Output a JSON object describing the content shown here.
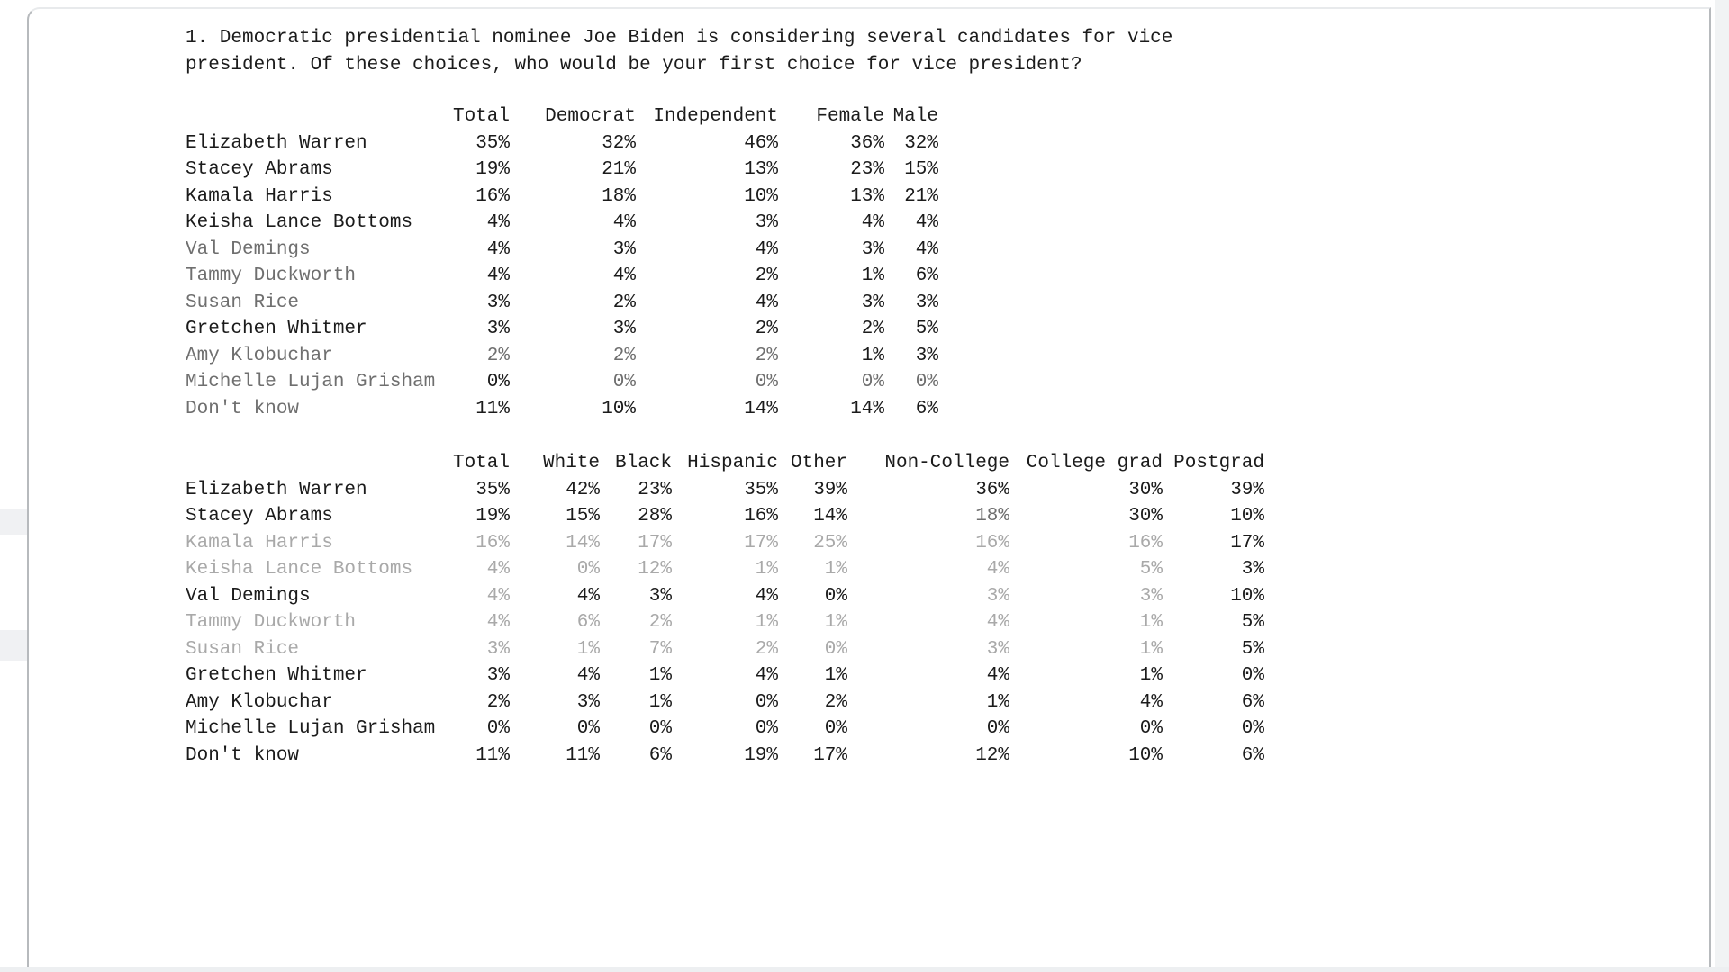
{
  "document": {
    "question": "1. Democratic presidential nominee Joe Biden is considering several candidates for vice president. Of these choices, who would be your first choice for vice president?"
  },
  "colors": {
    "text": "#1b1b1b",
    "faded_medium": "#6f6f6f",
    "faded_light": "#a9a9a9",
    "page_border": "#b7babd",
    "scrollbar_track": "#f1f3f4"
  },
  "table1": {
    "columns": [
      "Total",
      "Democrat",
      "Independent",
      "Female",
      "Male"
    ],
    "rows": [
      {
        "name": "Elizabeth Warren",
        "name_shade": 0,
        "values": [
          "35%",
          "32%",
          "46%",
          "36%",
          "32%"
        ],
        "value_shades": [
          0,
          0,
          0,
          0,
          0
        ]
      },
      {
        "name": "Stacey Abrams",
        "name_shade": 0,
        "values": [
          "19%",
          "21%",
          "13%",
          "23%",
          "15%"
        ],
        "value_shades": [
          0,
          0,
          0,
          0,
          0
        ]
      },
      {
        "name": "Kamala Harris",
        "name_shade": 0,
        "values": [
          "16%",
          "18%",
          "10%",
          "13%",
          "21%"
        ],
        "value_shades": [
          0,
          0,
          0,
          0,
          0
        ]
      },
      {
        "name": "Keisha Lance Bottoms",
        "name_shade": 0,
        "values": [
          "4%",
          "4%",
          "3%",
          "4%",
          "4%"
        ],
        "value_shades": [
          0,
          0,
          0,
          0,
          0
        ]
      },
      {
        "name": "Val Demings",
        "name_shade": 1,
        "values": [
          "4%",
          "3%",
          "4%",
          "3%",
          "4%"
        ],
        "value_shades": [
          0,
          0,
          0,
          0,
          0
        ]
      },
      {
        "name": "Tammy Duckworth",
        "name_shade": 1,
        "values": [
          "4%",
          "4%",
          "2%",
          "1%",
          "6%"
        ],
        "value_shades": [
          0,
          0,
          0,
          0,
          0
        ]
      },
      {
        "name": "Susan Rice",
        "name_shade": 1,
        "values": [
          "3%",
          "2%",
          "4%",
          "3%",
          "3%"
        ],
        "value_shades": [
          0,
          0,
          0,
          0,
          0
        ]
      },
      {
        "name": "Gretchen Whitmer",
        "name_shade": 0,
        "values": [
          "3%",
          "3%",
          "2%",
          "2%",
          "5%"
        ],
        "value_shades": [
          0,
          0,
          0,
          0,
          0
        ]
      },
      {
        "name": "Amy Klobuchar",
        "name_shade": 1,
        "values": [
          "2%",
          "2%",
          "2%",
          "1%",
          "3%"
        ],
        "value_shades": [
          1,
          1,
          1,
          0,
          0
        ]
      },
      {
        "name": "Michelle Lujan Grisham",
        "name_shade": 1,
        "values": [
          "0%",
          "0%",
          "0%",
          "0%",
          "0%"
        ],
        "value_shades": [
          0,
          1,
          1,
          1,
          1
        ]
      },
      {
        "name": "Don't know",
        "name_shade": 1,
        "values": [
          "11%",
          "10%",
          "14%",
          "14%",
          "6%"
        ],
        "value_shades": [
          0,
          0,
          0,
          0,
          0
        ]
      }
    ]
  },
  "table2": {
    "columns": [
      "Total",
      "White",
      "Black",
      "Hispanic",
      "Other",
      "Non-College",
      "College grad",
      "Postgrad"
    ],
    "rows": [
      {
        "name": "Elizabeth Warren",
        "name_shade": 0,
        "values": [
          "35%",
          "42%",
          "23%",
          "35%",
          "39%",
          "36%",
          "30%",
          "39%"
        ],
        "value_shades": [
          0,
          0,
          0,
          0,
          0,
          0,
          0,
          0
        ]
      },
      {
        "name": "Stacey Abrams",
        "name_shade": 0,
        "values": [
          "19%",
          "15%",
          "28%",
          "16%",
          "14%",
          "18%",
          "30%",
          "10%"
        ],
        "value_shades": [
          0,
          0,
          0,
          0,
          0,
          1,
          0,
          0
        ]
      },
      {
        "name": "Kamala Harris",
        "name_shade": 2,
        "values": [
          "16%",
          "14%",
          "17%",
          "17%",
          "25%",
          "16%",
          "16%",
          "17%"
        ],
        "value_shades": [
          2,
          2,
          2,
          2,
          2,
          2,
          2,
          0
        ]
      },
      {
        "name": "Keisha Lance Bottoms",
        "name_shade": 2,
        "values": [
          "4%",
          "0%",
          "12%",
          "1%",
          "1%",
          "4%",
          "5%",
          "3%"
        ],
        "value_shades": [
          2,
          2,
          2,
          2,
          2,
          2,
          2,
          0
        ]
      },
      {
        "name": "Val Demings",
        "name_shade": 0,
        "values": [
          "4%",
          "4%",
          "3%",
          "4%",
          "0%",
          "3%",
          "3%",
          "10%"
        ],
        "value_shades": [
          2,
          0,
          0,
          0,
          0,
          2,
          2,
          0
        ]
      },
      {
        "name": "Tammy Duckworth",
        "name_shade": 2,
        "values": [
          "4%",
          "6%",
          "2%",
          "1%",
          "1%",
          "4%",
          "1%",
          "5%"
        ],
        "value_shades": [
          2,
          2,
          2,
          2,
          2,
          2,
          2,
          0
        ]
      },
      {
        "name": "Susan Rice",
        "name_shade": 2,
        "values": [
          "3%",
          "1%",
          "7%",
          "2%",
          "0%",
          "3%",
          "1%",
          "5%"
        ],
        "value_shades": [
          2,
          2,
          2,
          2,
          2,
          2,
          2,
          0
        ]
      },
      {
        "name": "Gretchen Whitmer",
        "name_shade": 0,
        "values": [
          "3%",
          "4%",
          "1%",
          "4%",
          "1%",
          "4%",
          "1%",
          "0%"
        ],
        "value_shades": [
          0,
          0,
          0,
          0,
          0,
          0,
          0,
          0
        ]
      },
      {
        "name": "Amy Klobuchar",
        "name_shade": 0,
        "values": [
          "2%",
          "3%",
          "1%",
          "0%",
          "2%",
          "1%",
          "4%",
          "6%"
        ],
        "value_shades": [
          0,
          0,
          0,
          0,
          0,
          0,
          0,
          0
        ]
      },
      {
        "name": "Michelle Lujan Grisham",
        "name_shade": 0,
        "values": [
          "0%",
          "0%",
          "0%",
          "0%",
          "0%",
          "0%",
          "0%",
          "0%"
        ],
        "value_shades": [
          0,
          0,
          0,
          0,
          0,
          0,
          0,
          0
        ]
      },
      {
        "name": "Don't know",
        "name_shade": 0,
        "values": [
          "11%",
          "11%",
          "6%",
          "19%",
          "17%",
          "12%",
          "10%",
          "6%"
        ],
        "value_shades": [
          0,
          0,
          0,
          0,
          0,
          0,
          0,
          0
        ]
      }
    ]
  }
}
